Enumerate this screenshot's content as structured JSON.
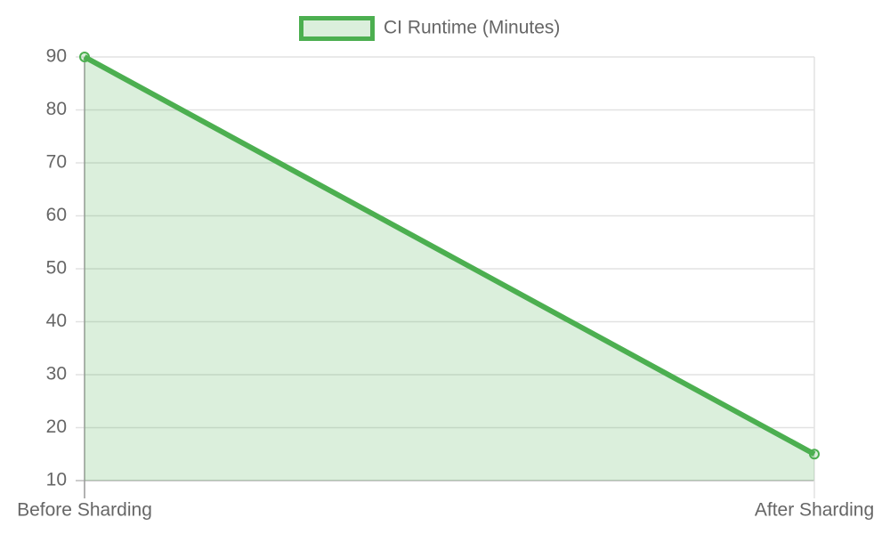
{
  "chart_data": {
    "type": "line",
    "categories": [
      "Before Sharding",
      "After Sharding"
    ],
    "series": [
      {
        "name": "CI Runtime (Minutes)",
        "color": "#4caf50",
        "values": [
          90,
          15
        ]
      }
    ],
    "fill": true,
    "ylim": [
      10,
      90
    ],
    "yticks": [
      10,
      20,
      30,
      40,
      50,
      60,
      70,
      80,
      90
    ],
    "grid": true,
    "legend": "top"
  }
}
